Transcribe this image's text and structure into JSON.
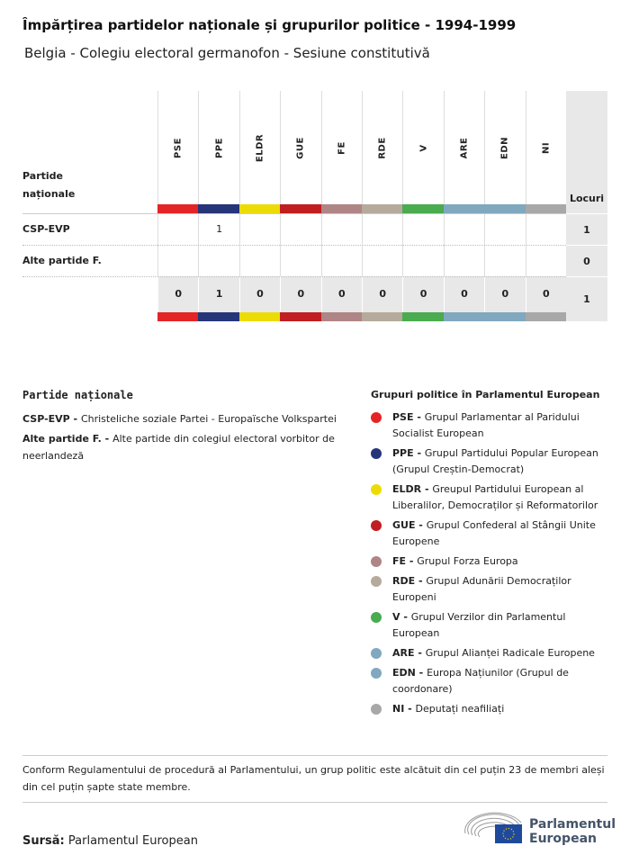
{
  "title": "Împărțirea partidelor naționale și grupurilor politice - 1994-1999",
  "subtitle": "Belgia - Colegiu electoral germanofon - Sesiune constitutivă",
  "table": {
    "row_header": "Partide naționale",
    "seats_header": "Locuri",
    "groups": [
      {
        "code": "PSE",
        "color": "#e32526"
      },
      {
        "code": "PPE",
        "color": "#263579"
      },
      {
        "code": "ELDR",
        "color": "#ecdc06"
      },
      {
        "code": "GUE",
        "color": "#c11e21"
      },
      {
        "code": "FE",
        "color": "#b08586"
      },
      {
        "code": "RDE",
        "color": "#b6aa9c"
      },
      {
        "code": "V",
        "color": "#4aab4f"
      },
      {
        "code": "ARE",
        "color": "#80a8be"
      },
      {
        "code": "EDN",
        "color": "#80a8be"
      },
      {
        "code": "NI",
        "color": "#a8a8a8"
      }
    ],
    "rows": [
      {
        "party": "CSP-EVP",
        "values": [
          "",
          "1",
          "",
          "",
          "",
          "",
          "",
          "",
          "",
          ""
        ],
        "seats": "1"
      },
      {
        "party": "Alte partide F.",
        "values": [
          "",
          "",
          "",
          "",
          "",
          "",
          "",
          "",
          "",
          ""
        ],
        "seats": "0"
      }
    ],
    "totals": [
      "0",
      "1",
      "0",
      "0",
      "0",
      "0",
      "0",
      "0",
      "0",
      "0"
    ],
    "total_seats": "1"
  },
  "national": {
    "heading": "Partide naționale",
    "items": [
      {
        "abbr": "CSP-EVP - ",
        "text": "Christeliche soziale Partei - Europaïsche Volkspartei"
      },
      {
        "abbr": "Alte partide F. - ",
        "text": "Alte partide din colegiul electoral vorbitor de neerlandeză"
      }
    ]
  },
  "legend": {
    "heading": "Grupuri politice în Parlamentul European",
    "items": [
      {
        "abbr": "PSE - ",
        "text": "Grupul Parlamentar al Paridului Socialist European"
      },
      {
        "abbr": "PPE - ",
        "text": "Grupul Partidului Popular European (Grupul Creștin-Democrat)"
      },
      {
        "abbr": "ELDR - ",
        "text": "Greupul Partidului European al Liberalilor, Democraților și Reformatorilor"
      },
      {
        "abbr": "GUE - ",
        "text": "Grupul Confederal al Stângii Unite Europene"
      },
      {
        "abbr": "FE - ",
        "text": "Grupul Forza Europa"
      },
      {
        "abbr": "RDE - ",
        "text": "Grupul Adunării Democraților Europeni"
      },
      {
        "abbr": "V - ",
        "text": "Grupul Verzilor din Parlamentul European"
      },
      {
        "abbr": "ARE - ",
        "text": "Grupul Alianței Radicale Europene"
      },
      {
        "abbr": "EDN - ",
        "text": "Europa Națiunilor (Grupul de coordonare)"
      },
      {
        "abbr": "NI - ",
        "text": "Deputați neafiliați"
      }
    ]
  },
  "note": "Conform Regulamentului de procedură al Parlamentului, un grup politic este alcătuit din cel puțin 23 de membri aleși din cel puțin șapte state membre.",
  "source_label": "Sursă:",
  "source": "Parlamentul European",
  "logo": {
    "line1": "Parlamentul",
    "line2": "European"
  }
}
